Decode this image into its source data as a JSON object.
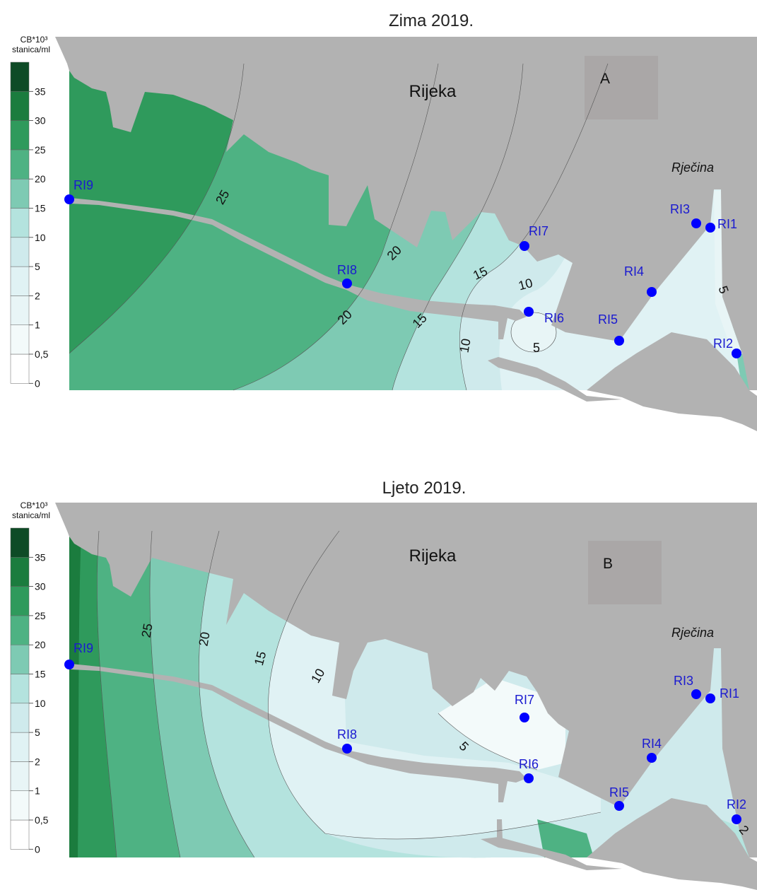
{
  "maps": [
    {
      "title": "Zima 2019.",
      "panel_letter": "A",
      "city_label": "Rijeka",
      "river_label": "Rječina",
      "legend": {
        "unit_line1": "CB*10³",
        "unit_line2": "stanica/ml",
        "levels": [
          "0",
          "0,5",
          "1",
          "2",
          "5",
          "10",
          "15",
          "20",
          "25",
          "30",
          "35"
        ],
        "colors": [
          "#ffffff",
          "#f3fafa",
          "#e8f5f6",
          "#e0f2f4",
          "#cfeaec",
          "#b4e3de",
          "#7ecab3",
          "#4eb283",
          "#2f9a5c",
          "#1b7c3e",
          "#0e4b26"
        ]
      },
      "contour_labels": [
        "25",
        "20",
        "20",
        "15",
        "15",
        "10",
        "10",
        "5",
        "5"
      ],
      "stations": [
        "RI1",
        "RI2",
        "RI3",
        "RI4",
        "RI5",
        "RI6",
        "RI7",
        "RI8",
        "RI9"
      ]
    },
    {
      "title": "Ljeto 2019.",
      "panel_letter": "B",
      "city_label": "Rijeka",
      "river_label": "Rječina",
      "legend": {
        "unit_line1": "CB*10³",
        "unit_line2": "stanica/ml",
        "levels": [
          "0",
          "0,5",
          "1",
          "2",
          "5",
          "10",
          "15",
          "20",
          "25",
          "30",
          "35"
        ],
        "colors": [
          "#ffffff",
          "#f3fafa",
          "#e8f5f6",
          "#e0f2f4",
          "#cfeaec",
          "#b4e3de",
          "#7ecab3",
          "#4eb283",
          "#2f9a5c",
          "#1b7c3e",
          "#0e4b26"
        ]
      },
      "contour_labels": [
        "25",
        "20",
        "15",
        "10",
        "5",
        "2"
      ],
      "stations": [
        "RI1",
        "RI2",
        "RI3",
        "RI4",
        "RI5",
        "RI6",
        "RI7",
        "RI8",
        "RI9"
      ]
    }
  ],
  "colors": {
    "land": "#b2b2b2",
    "station_fill": "#0000ff",
    "station_label": "#1a1ad0",
    "panel_box": "#aaa7a7"
  }
}
